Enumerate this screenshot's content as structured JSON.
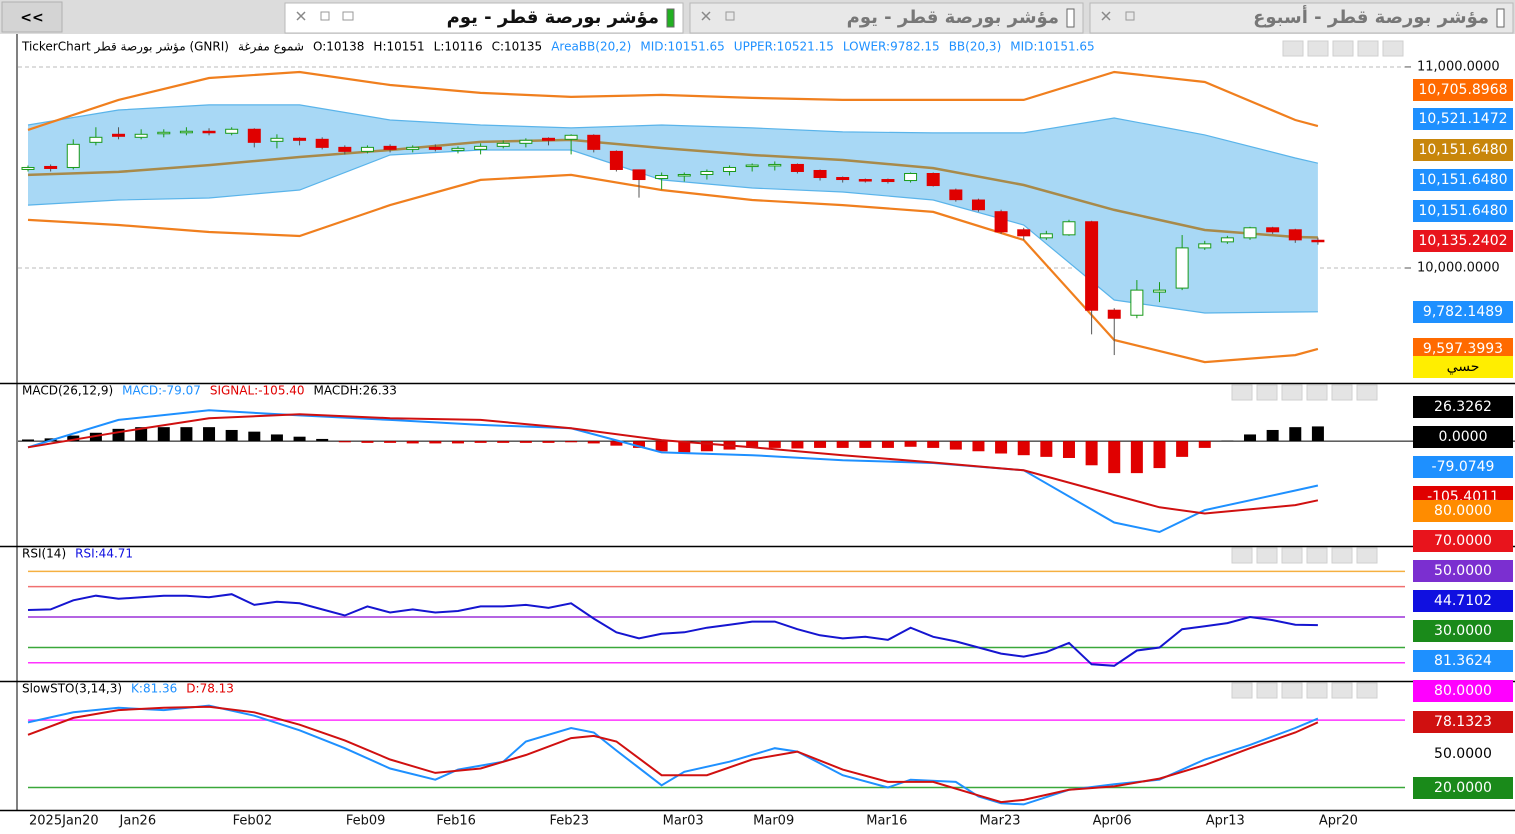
{
  "nav_button": "<<",
  "tabs": [
    {
      "title": "مؤشر بورصة قطر - يوم",
      "active": true
    },
    {
      "title": "مؤشر بورصة قطر - يوم",
      "active": false
    },
    {
      "title": "مؤشر بورصة قطر - أسبوع",
      "active": false
    }
  ],
  "chart_data": [
    {
      "type": "candlestick",
      "legend": [
        {
          "label": "TickerChart مؤشر بورصة قطر (GNRI)",
          "color": "#000000"
        },
        {
          "label": "شموع مفرغة",
          "color": "#000000"
        },
        {
          "label": "O:10138",
          "color": "#000000"
        },
        {
          "label": "H:10151",
          "color": "#000000"
        },
        {
          "label": "L:10116",
          "color": "#000000"
        },
        {
          "label": "C:10135",
          "color": "#000000"
        },
        {
          "label": "AreaBB(20,2)",
          "color": "#1e90ff"
        },
        {
          "label": "MID:10151.65",
          "color": "#1e90ff"
        },
        {
          "label": "UPPER:10521.15",
          "color": "#1e90ff"
        },
        {
          "label": "LOWER:9782.15",
          "color": "#1e90ff"
        },
        {
          "label": "BB(20,3)",
          "color": "#1e90ff"
        },
        {
          "label": "MID:10151.65",
          "color": "#1e90ff"
        }
      ],
      "categories": [
        "2025Jan20",
        null,
        null,
        null,
        "Jan26",
        null,
        null,
        null,
        null,
        "Feb02",
        null,
        null,
        null,
        null,
        "Feb09",
        null,
        null,
        null,
        "Feb16",
        null,
        null,
        null,
        null,
        "Feb23",
        null,
        null,
        null,
        null,
        "Mar03",
        null,
        null,
        null,
        "Mar09",
        null,
        null,
        null,
        null,
        "Mar16",
        null,
        null,
        null,
        null,
        "Mar23",
        null,
        null,
        null,
        null,
        "Apr06",
        null,
        null,
        null,
        null,
        "Apr13",
        null,
        null,
        null,
        null,
        "Apr20"
      ],
      "open": [
        10490,
        10505,
        10500,
        10625,
        10665,
        10650,
        10670,
        10675,
        10680,
        10670,
        10690,
        10630,
        10645,
        10640,
        10600,
        10580,
        10605,
        10590,
        10600,
        10585,
        10590,
        10605,
        10620,
        10645,
        10640,
        10660,
        10580,
        10488,
        10445,
        10460,
        10465,
        10480,
        10505,
        10510,
        10515,
        10485,
        10450,
        10440,
        10440,
        10435,
        10470,
        10388,
        10338,
        10280,
        10190,
        10150,
        10165,
        10230,
        9790,
        9765,
        9880,
        9900,
        10100,
        10130,
        10150,
        10200,
        10190,
        10138
      ],
      "high": [
        10510,
        10515,
        10640,
        10700,
        10700,
        10690,
        10690,
        10700,
        10695,
        10700,
        10695,
        10665,
        10650,
        10650,
        10610,
        10610,
        10615,
        10610,
        10615,
        10605,
        10620,
        10635,
        10645,
        10650,
        10665,
        10665,
        10585,
        10490,
        10475,
        10475,
        10490,
        10510,
        10520,
        10530,
        10520,
        10490,
        10455,
        10445,
        10445,
        10475,
        10475,
        10395,
        10345,
        10290,
        10200,
        10185,
        10240,
        10235,
        9800,
        9940,
        9930,
        10164,
        10135,
        10160,
        10205,
        10205,
        10195,
        10151
      ],
      "low": [
        10480,
        10480,
        10490,
        10610,
        10640,
        10640,
        10650,
        10660,
        10660,
        10660,
        10600,
        10595,
        10610,
        10590,
        10565,
        10570,
        10575,
        10575,
        10580,
        10570,
        10565,
        10595,
        10600,
        10610,
        10565,
        10575,
        10480,
        10350,
        10390,
        10430,
        10440,
        10460,
        10480,
        10485,
        10470,
        10435,
        10425,
        10425,
        10420,
        10425,
        10405,
        10330,
        10280,
        10170,
        10140,
        10140,
        10160,
        9670,
        9567,
        9750,
        9830,
        9890,
        10090,
        10120,
        10140,
        10170,
        10125,
        10116
      ],
      "close": [
        10500,
        10495,
        10615,
        10650,
        10655,
        10665,
        10675,
        10680,
        10675,
        10690,
        10625,
        10645,
        10635,
        10600,
        10580,
        10600,
        10590,
        10600,
        10590,
        10595,
        10605,
        10620,
        10635,
        10635,
        10660,
        10590,
        10490,
        10440,
        10460,
        10465,
        10480,
        10500,
        10512,
        10515,
        10480,
        10450,
        10440,
        10435,
        10430,
        10470,
        10410,
        10340,
        10290,
        10180,
        10160,
        10170,
        10230,
        9790,
        9750,
        9890,
        9890,
        10100,
        10120,
        10150,
        10200,
        10180,
        10140,
        10135
      ],
      "up_color": "#1a9a1a",
      "down_color": "#e00000",
      "area_fill": "#a8d8f5",
      "bands": [
        {
          "color": "#5ab4ea",
          "x": [
            0,
            4,
            8,
            12,
            16,
            20,
            24,
            28,
            32,
            36,
            40,
            44,
            48,
            52,
            56,
            57
          ],
          "values": [
            10711,
            10786,
            10811,
            10811,
            10736,
            10711,
            10697,
            10711,
            10697,
            10677,
            10672,
            10672,
            10746,
            10662,
            10547,
            10521.15
          ]
        },
        {
          "color": "#5ab4ea",
          "x": [
            0,
            4,
            8,
            12,
            16,
            20,
            24,
            28,
            32,
            36,
            40,
            44,
            48,
            52,
            56,
            57
          ],
          "values": [
            10313,
            10338,
            10348,
            10388,
            10562,
            10587,
            10587,
            10438,
            10398,
            10378,
            10338,
            10214,
            9841,
            9776,
            9781,
            9782.15
          ]
        },
        {
          "color": "#a88a4a",
          "x": [
            0,
            4,
            8,
            12,
            16,
            20,
            24,
            28,
            32,
            36,
            40,
            44,
            48,
            52,
            56,
            57
          ],
          "values": [
            10463,
            10478,
            10512,
            10552,
            10587,
            10627,
            10637,
            10597,
            10562,
            10537,
            10497,
            10413,
            10289,
            10189,
            10154,
            10151.65
          ]
        },
        {
          "color": "#f07f1e",
          "x": [
            0,
            4,
            8,
            12,
            16,
            20,
            24,
            28,
            32,
            36,
            40,
            44,
            48,
            52,
            56,
            57
          ],
          "values": [
            10687,
            10836,
            10945,
            10975,
            10910,
            10871,
            10851,
            10861,
            10846,
            10836,
            10836,
            10836,
            10975,
            10925,
            10736,
            10705.9
          ]
        },
        {
          "color": "#f07f1e",
          "x": [
            0,
            4,
            8,
            12,
            16,
            20,
            24,
            28,
            32,
            36,
            40,
            44,
            48,
            52,
            56,
            57
          ],
          "values": [
            10239,
            10214,
            10179,
            10159,
            10313,
            10438,
            10463,
            10388,
            10338,
            10313,
            10279,
            10139,
            9642,
            9532,
            9567,
            9597.4
          ]
        }
      ],
      "ylim": [
        9428,
        11134
      ],
      "yticks": [
        {
          "value": 11000,
          "label": "11,000.0000"
        },
        {
          "value": 10000,
          "label": "10,000.0000"
        }
      ],
      "grid": true,
      "tags": [
        {
          "label": "10,705.8968",
          "color": "#ff6a00"
        },
        {
          "label": "10,521.1472",
          "color": "#1e90ff"
        },
        {
          "label": "10,151.6480",
          "color": "#c8860b"
        },
        {
          "label": "10,151.6480",
          "color": "#1e90ff"
        },
        {
          "label": "10,151.6480",
          "color": "#1e90ff"
        },
        {
          "label": "10,135.2402",
          "color": "#e8141c"
        },
        {
          "label": "9,782.1489",
          "color": "#1e90ff"
        },
        {
          "label": "9,597.3993",
          "color": "#ff6a00"
        },
        {
          "label": "حسي",
          "color": "#ffee00",
          "text_color": "#000000"
        }
      ]
    },
    {
      "type": "macd",
      "legend": [
        {
          "label": "MACD(26,12,9)",
          "color": "#000000"
        },
        {
          "label": "MACD:-79.07",
          "color": "#1e90ff"
        },
        {
          "label": "SIGNAL:-105.40",
          "color": "#e00000"
        },
        {
          "label": "MACDH:26.33",
          "color": "#000000"
        }
      ],
      "ylim": [
        -187,
        102
      ],
      "histogram": [
        3,
        5,
        10,
        15,
        22,
        25,
        25,
        25,
        25,
        20,
        17,
        12,
        8,
        4,
        -2,
        -3,
        -3,
        -4,
        -4,
        -4,
        -3,
        -3,
        -3,
        -3,
        -2,
        -4,
        -8,
        -12,
        -18,
        -20,
        -18,
        -15,
        -12,
        -12,
        -13,
        -12,
        -12,
        -12,
        -12,
        -10,
        -12,
        -15,
        -18,
        -22,
        -25,
        -28,
        -30,
        -43,
        -57,
        -57,
        -48,
        -28,
        -12,
        1,
        12,
        20,
        25,
        26.33
      ],
      "up_color": "#000000",
      "down_color": "#e00000",
      "series": [
        {
          "color": "#1e90ff",
          "x": [
            0,
            4,
            8,
            12,
            16,
            20,
            24,
            28,
            32,
            36,
            40,
            44,
            48,
            50,
            52,
            56,
            57
          ],
          "values": [
            -11,
            38,
            55,
            46,
            38,
            29,
            23,
            -20,
            -25,
            -34,
            -39,
            -52,
            -145,
            -162,
            -123,
            -88,
            -79.07
          ]
        },
        {
          "color": "#d01010",
          "x": [
            0,
            4,
            8,
            12,
            16,
            20,
            24,
            28,
            32,
            36,
            40,
            44,
            48,
            50,
            52,
            56,
            57
          ],
          "values": [
            -11,
            16,
            41,
            48,
            41,
            38,
            23,
            2,
            -11,
            -25,
            -38,
            -52,
            -96,
            -118,
            -129,
            -114,
            -105.4
          ]
        }
      ],
      "tags": [
        {
          "label": "26.3262",
          "color": "#000000"
        },
        {
          "label": "0.0000",
          "color": "#000000"
        },
        {
          "label": "-79.0749",
          "color": "#1e90ff"
        },
        {
          "label": "-105.4011",
          "color": "#e00000"
        }
      ]
    },
    {
      "type": "line",
      "legend": [
        {
          "label": "RSI(14)",
          "color": "#000000"
        },
        {
          "label": "RSI:44.71",
          "color": "#1010e0"
        }
      ],
      "ylim": [
        8,
        96
      ],
      "levels": [
        {
          "value": 80,
          "color": "#f5b041"
        },
        {
          "value": 70,
          "color": "#f07070"
        },
        {
          "value": 50,
          "color": "#9b30d9"
        },
        {
          "value": 30,
          "color": "#3aa83a"
        },
        {
          "value": 20,
          "color": "#ff33ff"
        }
      ],
      "series": [
        {
          "color": "#1515d0",
          "x": [
            0,
            1,
            2,
            3,
            4,
            5,
            6,
            7,
            8,
            9,
            10,
            11,
            12,
            13,
            14,
            15,
            16,
            17,
            18,
            19,
            20,
            21,
            22,
            23,
            24,
            25,
            26,
            27,
            28,
            29,
            30,
            31,
            32,
            33,
            34,
            35,
            36,
            37,
            38,
            39,
            40,
            41,
            42,
            43,
            44,
            45,
            46,
            47,
            48,
            49,
            50,
            51,
            52,
            53,
            54,
            55,
            56,
            57
          ],
          "values": [
            54.6,
            55,
            61,
            64,
            62,
            63,
            64,
            64,
            63,
            65,
            58,
            60,
            59,
            55,
            51,
            57,
            53,
            55,
            53,
            54,
            57,
            57,
            58,
            56,
            59,
            49,
            40,
            36,
            39,
            40,
            43,
            45,
            47,
            47,
            42,
            38,
            36,
            37,
            35,
            43,
            37,
            34,
            30,
            26,
            24,
            27,
            33,
            19,
            18,
            28,
            30,
            42,
            44,
            46,
            50,
            48,
            45,
            44.71
          ]
        }
      ],
      "tags": [
        {
          "label": "80.0000",
          "color": "#ff8c00"
        },
        {
          "label": "70.0000",
          "color": "#e8141c"
        },
        {
          "label": "50.0000",
          "color": "#7b2fd0"
        },
        {
          "label": "44.7102",
          "color": "#1010e0"
        },
        {
          "label": "30.0000",
          "color": "#1a8a1a"
        },
        {
          "label": "81.3624",
          "color": "#1e90ff"
        }
      ]
    },
    {
      "type": "line",
      "legend": [
        {
          "label": "SlowSTO(3,14,3)",
          "color": "#000000"
        },
        {
          "label": "K:81.36",
          "color": "#1e90ff"
        },
        {
          "label": "D:78.13",
          "color": "#e00000"
        }
      ],
      "ylim": [
        0,
        114
      ],
      "levels": [
        {
          "value": 80,
          "color": "#ff33ff"
        },
        {
          "value": 20,
          "color": "#3aa83a"
        }
      ],
      "series": [
        {
          "color": "#1e90ff",
          "x": [
            0,
            2,
            4,
            6,
            8,
            10,
            12,
            14,
            16,
            18,
            19,
            21,
            22,
            24,
            25,
            26,
            28,
            29,
            31,
            33,
            34,
            36,
            38,
            39,
            41,
            42,
            43,
            44,
            46,
            48,
            50,
            52,
            54,
            56,
            57
          ],
          "values": [
            78,
            87,
            91,
            89,
            93,
            84,
            71,
            55,
            37,
            27,
            36,
            43,
            61,
            73,
            69,
            53,
            22,
            34,
            43,
            55,
            52,
            31,
            20,
            27,
            25,
            12,
            6,
            5,
            18,
            23,
            27,
            45,
            58,
            73,
            81.36
          ]
        },
        {
          "color": "#d01010",
          "x": [
            0,
            2,
            4,
            6,
            8,
            10,
            12,
            14,
            16,
            18,
            20,
            22,
            24,
            25,
            26,
            28,
            30,
            32,
            34,
            36,
            38,
            40,
            42,
            43,
            44,
            46,
            48,
            50,
            52,
            54,
            56,
            57
          ],
          "values": [
            67,
            82,
            89,
            91,
            92,
            87,
            76,
            62,
            45,
            33,
            37,
            49,
            64,
            66,
            61,
            31,
            31,
            45,
            52,
            36,
            25,
            25,
            13,
            7,
            9,
            18,
            21,
            28,
            40,
            55,
            69,
            78.13
          ]
        }
      ],
      "tags": [
        {
          "label": "80.0000",
          "color": "#ff00ff"
        },
        {
          "label": "78.1323",
          "color": "#d01010"
        },
        {
          "label": "50.0000",
          "color": "#ffffff",
          "text_color": "#000000"
        },
        {
          "label": "20.0000",
          "color": "#1a8a1a"
        }
      ]
    }
  ]
}
